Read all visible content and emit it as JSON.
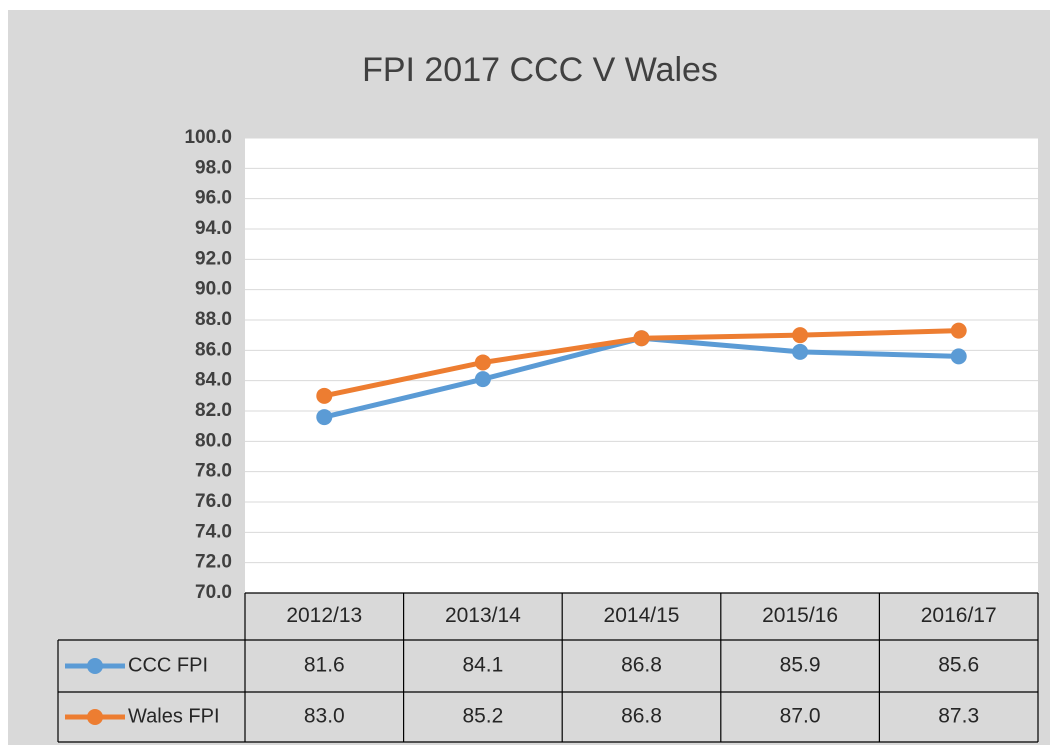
{
  "chart_data": {
    "type": "line",
    "title": "FPI 2017 CCC V Wales",
    "categories": [
      "2012/13",
      "2013/14",
      "2014/15",
      "2015/16",
      "2016/17"
    ],
    "series": [
      {
        "name": "CCC FPI",
        "color": "#5b9bd5",
        "values": [
          81.6,
          84.1,
          86.8,
          85.9,
          85.6
        ],
        "value_labels": [
          "81.6",
          "84.1",
          "86.8",
          "85.9",
          "85.6"
        ]
      },
      {
        "name": "Wales FPI",
        "color": "#ed7d31",
        "values": [
          83.0,
          85.2,
          86.8,
          87.0,
          87.3
        ],
        "value_labels": [
          "83.0",
          "85.2",
          "86.8",
          "87.0",
          "87.3"
        ]
      }
    ],
    "ylim": [
      70,
      100
    ],
    "yticks": [
      {
        "value": 70,
        "label": "70.0"
      },
      {
        "value": 72,
        "label": "72.0"
      },
      {
        "value": 74,
        "label": "74.0"
      },
      {
        "value": 76,
        "label": "76.0"
      },
      {
        "value": 78,
        "label": "78.0"
      },
      {
        "value": 80,
        "label": "80.0"
      },
      {
        "value": 82,
        "label": "82.0"
      },
      {
        "value": 84,
        "label": "84.0"
      },
      {
        "value": 86,
        "label": "86.0"
      },
      {
        "value": 88,
        "label": "88.0"
      },
      {
        "value": 90,
        "label": "90.0"
      },
      {
        "value": 92,
        "label": "92.0"
      },
      {
        "value": 94,
        "label": "94.0"
      },
      {
        "value": 96,
        "label": "96.0"
      },
      {
        "value": 98,
        "label": "98.0"
      },
      {
        "value": 100,
        "label": "100.0"
      }
    ],
    "grid": true
  }
}
